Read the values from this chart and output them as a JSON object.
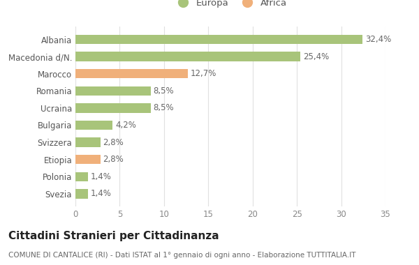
{
  "categories": [
    "Albania",
    "Macedonia d/N.",
    "Marocco",
    "Romania",
    "Ucraina",
    "Bulgaria",
    "Svizzera",
    "Etiopia",
    "Polonia",
    "Svezia"
  ],
  "values": [
    32.4,
    25.4,
    12.7,
    8.5,
    8.5,
    4.2,
    2.8,
    2.8,
    1.4,
    1.4
  ],
  "labels": [
    "32,4%",
    "25,4%",
    "12,7%",
    "8,5%",
    "8,5%",
    "4,2%",
    "2,8%",
    "2,8%",
    "1,4%",
    "1,4%"
  ],
  "colors": [
    "#a8c47a",
    "#a8c47a",
    "#f0b07a",
    "#a8c47a",
    "#a8c47a",
    "#a8c47a",
    "#a8c47a",
    "#f0b07a",
    "#a8c47a",
    "#a8c47a"
  ],
  "legend_europa_color": "#a8c47a",
  "legend_africa_color": "#f0b07a",
  "xlim": [
    0,
    35
  ],
  "xticks": [
    0,
    5,
    10,
    15,
    20,
    25,
    30,
    35
  ],
  "title": "Cittadini Stranieri per Cittadinanza",
  "subtitle": "COMUNE DI CANTALICE (RI) - Dati ISTAT al 1° gennaio di ogni anno - Elaborazione TUTTITALIA.IT",
  "background_color": "#ffffff",
  "grid_color": "#e0e0e0",
  "bar_height": 0.55,
  "label_fontsize": 8.5,
  "tick_fontsize": 8.5,
  "title_fontsize": 11,
  "subtitle_fontsize": 7.5,
  "legend_fontsize": 9.5
}
